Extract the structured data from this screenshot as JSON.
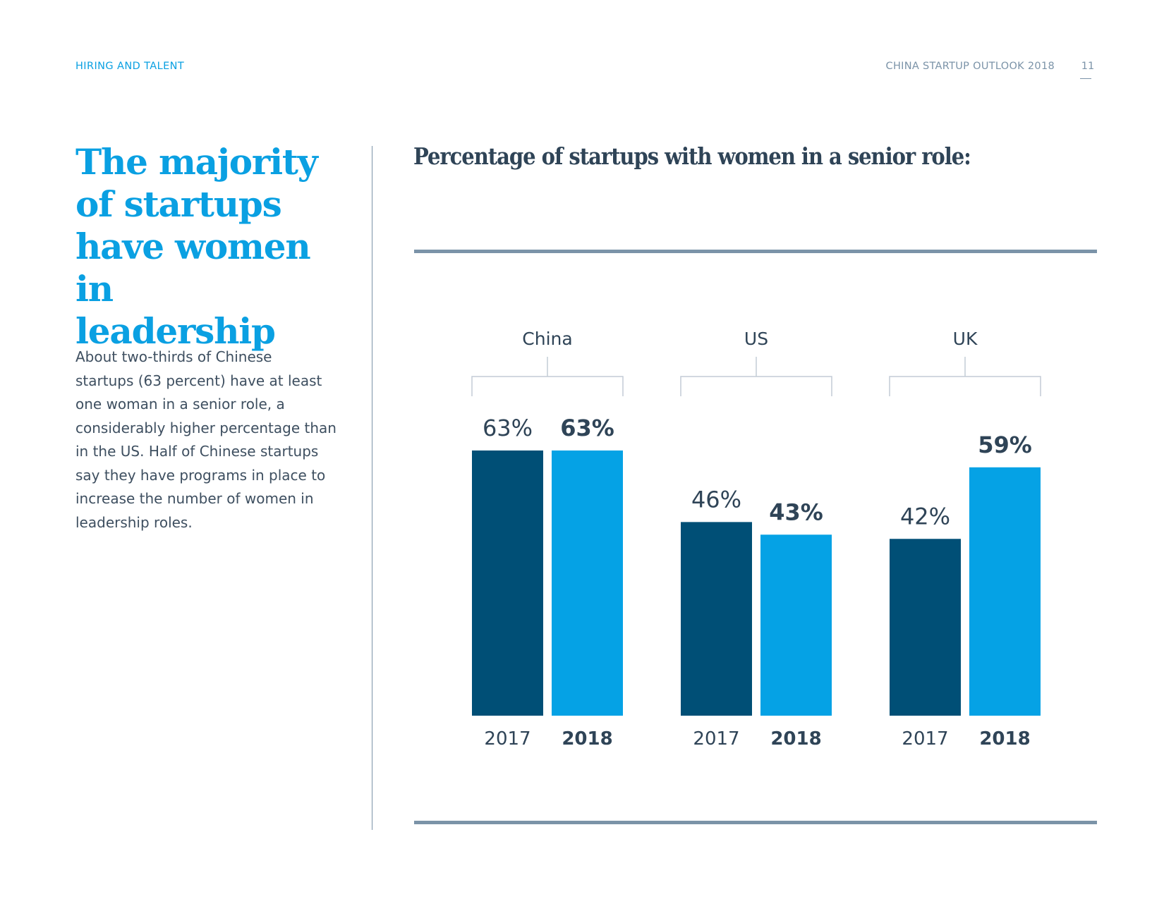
{
  "header": {
    "section": "HIRING AND TALENT",
    "publication": "CHINA STARTUP OUTLOOK 2018",
    "page_number": "11"
  },
  "left": {
    "headline": "The majority of startups have women in leadership",
    "headline_lines": [
      "The majority",
      "of startups",
      "have women in",
      "leadership"
    ],
    "body": "About two-thirds of Chinese startups (63 percent) have at least one woman in a senior role, a considerably higher percentage than in the US. Half of Chinese startups say they have programs in place to increase the number of women in leadership roles.",
    "body_lines": [
      "About two-thirds of Chinese",
      "startups (63 percent) have at least",
      "one woman in a senior role, a",
      "considerably higher percentage than",
      "in the US. Half of Chinese startups",
      "say they have programs in place to",
      "increase the number of women in",
      "leadership roles."
    ]
  },
  "colors": {
    "accent": "#0aa0e2",
    "series_2017": "#004f76",
    "series_2018": "#05a2e5",
    "text_dark": "#2f4457",
    "rule": "#7b93a8",
    "bracket": "#c3ccd6"
  },
  "chart_data": {
    "type": "bar",
    "title": "Percentage of startups with women in a senior role:",
    "categories": [
      "China",
      "US",
      "UK"
    ],
    "series": [
      {
        "name": "2017",
        "values": [
          63,
          46,
          42
        ],
        "labels": [
          "63%",
          "46%",
          "42%"
        ],
        "bold": false
      },
      {
        "name": "2018",
        "values": [
          63,
          43,
          59
        ],
        "labels": [
          "63%",
          "43%",
          "59%"
        ],
        "bold": true
      }
    ],
    "xlabel": "",
    "ylabel": "",
    "ylim": [
      0,
      100
    ],
    "grid": false,
    "legend": "none (year labels under each bar)",
    "unit": "%"
  }
}
